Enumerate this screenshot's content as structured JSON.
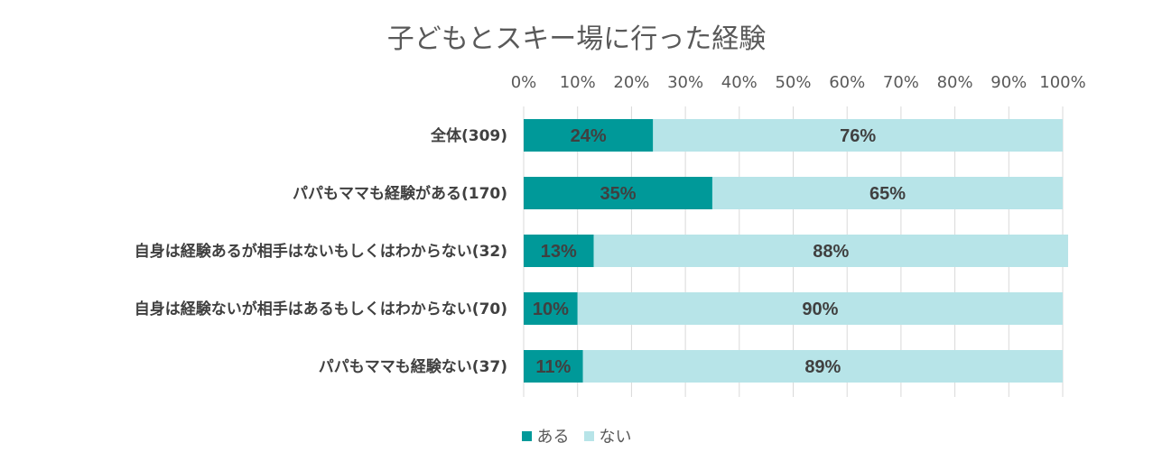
{
  "chart_data": {
    "type": "bar",
    "orientation": "horizontal",
    "stacked": "percent",
    "title": "子どもとスキー場に行った経験",
    "categories": [
      "全体(309)",
      "パパもママも経験がある(170)",
      "自身は経験あるが相手はないもしくはわからない(32)",
      "自身は経験ないが相手はあるもしくはわからない(70)",
      "パパもママも経験ない(37)"
    ],
    "series": [
      {
        "name": "ある",
        "color": "#009999",
        "values": [
          24,
          35,
          13,
          10,
          11
        ]
      },
      {
        "name": "ない",
        "color": "#b7e4e8",
        "values": [
          76,
          65,
          88,
          90,
          89
        ]
      }
    ],
    "x_ticks": [
      "0%",
      "10%",
      "20%",
      "30%",
      "40%",
      "50%",
      "60%",
      "70%",
      "80%",
      "90%",
      "100%"
    ],
    "xlim": [
      0,
      100
    ],
    "grid": true,
    "axis_position": "top",
    "legend_position": "bottom"
  }
}
